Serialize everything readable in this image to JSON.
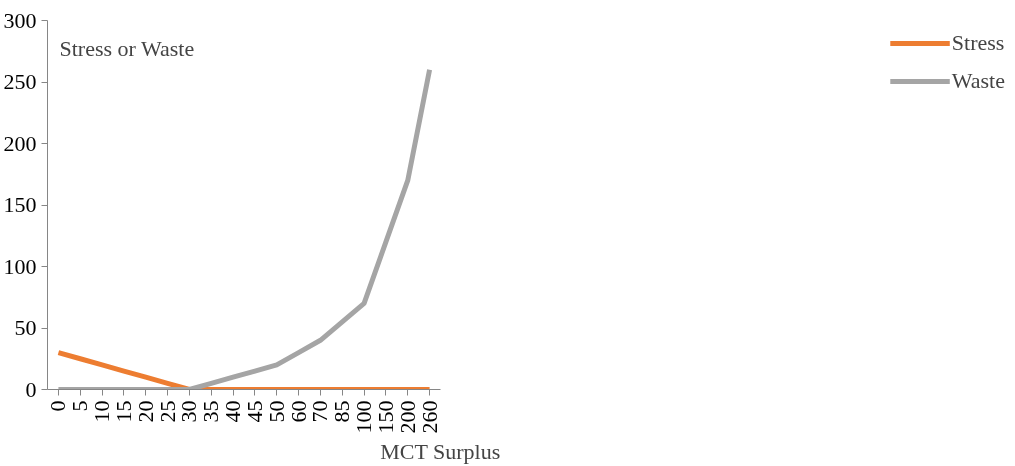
{
  "chart_data": {
    "type": "line",
    "ylabel": "Stress or Waste",
    "xlabel": "MCT Surplus",
    "categories": [
      "0",
      "5",
      "10",
      "15",
      "20",
      "25",
      "30",
      "35",
      "40",
      "45",
      "50",
      "60",
      "70",
      "85",
      "100",
      "150",
      "200",
      "260"
    ],
    "series": [
      {
        "name": "Stress",
        "color": "#ed7d31",
        "values": [
          30,
          25,
          20,
          15,
          10,
          5,
          0,
          0,
          0,
          0,
          0,
          0,
          0,
          0,
          0,
          0,
          0,
          0
        ]
      },
      {
        "name": "Waste",
        "color": "#a5a5a5",
        "values": [
          0,
          0,
          0,
          0,
          0,
          0,
          0,
          5,
          10,
          15,
          20,
          30,
          40,
          55,
          70,
          120,
          170,
          260
        ]
      }
    ],
    "ylim": [
      0,
      300
    ],
    "yticks": [
      0,
      50,
      100,
      150,
      200,
      250,
      300
    ],
    "grid": false,
    "legend": "right",
    "marker": "none",
    "line_style": "solid"
  }
}
